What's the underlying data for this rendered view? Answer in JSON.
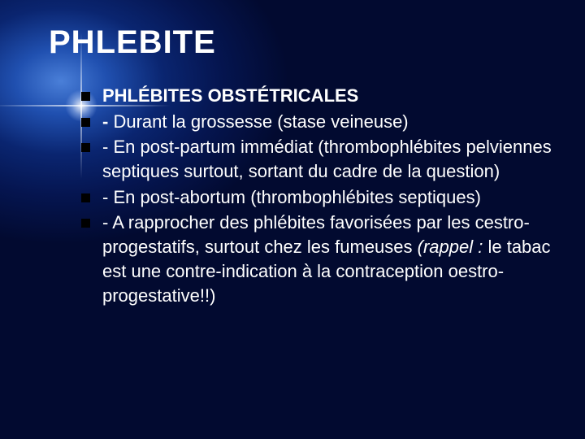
{
  "slide": {
    "title": "PHLEBITE",
    "title_fontsize": 40,
    "body_fontsize": 22,
    "text_color": "#ffffff",
    "bullet_color": "#000000",
    "background_gradient": {
      "type": "radial",
      "center": "top-left",
      "colors": [
        "#4a7fd8",
        "#2050b0",
        "#0a2570",
        "#051550",
        "#020a30"
      ]
    },
    "bullets": [
      {
        "prefix": "",
        "bold": "PHLÉBITES OBSTÉTRICALES",
        "rest": ""
      },
      {
        "prefix": "",
        "bold": "- ",
        "rest": "Durant la grossesse (stase veineuse)"
      },
      {
        "prefix": "- En post-partum immédiat (thrombophlébites pelviennes septiques surtout, sortant du cadre de la question)",
        "bold": "",
        "rest": ""
      },
      {
        "prefix": "- En post-abortum (thrombophlébites septiques)",
        "bold": "",
        "rest": ""
      },
      {
        "prefix": "- A rapprocher des phlébites favorisées par les cestro-progestatifs, surtout chez les fumeuses ",
        "italic": "(rappel : ",
        "rest2": "le tabac est une contre-indication à la contraception oestro-progestative!!)"
      }
    ]
  }
}
